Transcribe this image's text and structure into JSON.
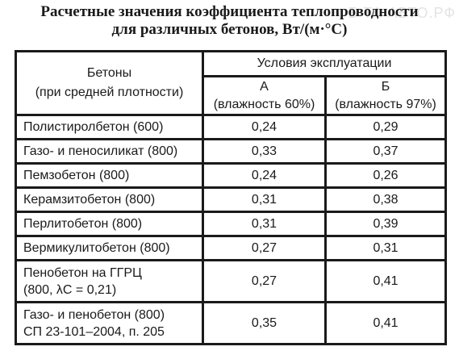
{
  "title": {
    "line1": "Расчетные значения коэффициента теплопроводности",
    "line2": "для различных бетонов, Вт/(м·°С)"
  },
  "watermark": "Б   ТА   АВТО.РФ",
  "table": {
    "col_header": {
      "line1": "Бетоны",
      "line2": "(при средней плотности)"
    },
    "conditions_header": "Условия эксплуатации",
    "cond_a": {
      "letter": "А",
      "note": "(влажность 60%)"
    },
    "cond_b": {
      "letter": "Б",
      "note": "(влажность 97%)"
    },
    "rows": [
      {
        "name": "Полистиролбетон (600)",
        "a": "0,24",
        "b": "0,29"
      },
      {
        "name": "Газо- и пеносиликат (800)",
        "a": "0,33",
        "b": "0,37"
      },
      {
        "name": "Пемзобетон (800)",
        "a": "0,24",
        "b": "0,26"
      },
      {
        "name": "Керамзитобетон (800)",
        "a": "0,31",
        "b": "0,38"
      },
      {
        "name": "Перлитобетон (800)",
        "a": "0,31",
        "b": "0,39"
      },
      {
        "name": "Вермикулитобетон (800)",
        "a": "0,27",
        "b": "0,31"
      },
      {
        "name_line1": "Пенобетон на ГГРЦ",
        "name_line2": "(800, λС = 0,21)",
        "a": "0,27",
        "b": "0,41"
      },
      {
        "name_line1": "Газо- и пенобетон (800)",
        "name_line2": "СП 23-101–2004, п. 205",
        "a": "0,35",
        "b": "0,41"
      }
    ]
  }
}
